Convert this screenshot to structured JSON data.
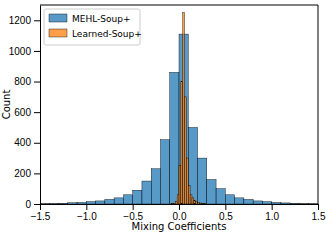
{
  "chart_data": {
    "type": "histogram",
    "x_label": "Mixing Coefficients",
    "y_label": "Count",
    "xlim": [
      -1.5,
      1.5
    ],
    "xticks": [
      {
        "value": -1.5,
        "label": "−1.5"
      },
      {
        "value": -1.0,
        "label": "−1.0"
      },
      {
        "value": -0.5,
        "label": "−0.5"
      },
      {
        "value": 0.0,
        "label": "0.0"
      },
      {
        "value": 0.5,
        "label": "0.5"
      },
      {
        "value": 1.0,
        "label": "1.0"
      },
      {
        "value": 1.5,
        "label": "1.5"
      }
    ],
    "ylim": [
      0,
      1300
    ],
    "yticks": [
      0,
      200,
      400,
      600,
      800,
      1000,
      1200
    ],
    "legend": "upper left",
    "series": [
      {
        "name": "MEHL-Soup+",
        "color": "#1f77b4",
        "bins": [
          -1.5,
          -1.4,
          -1.3,
          -1.2,
          -1.1,
          -1.0,
          -0.9,
          -0.8,
          -0.7,
          -0.6,
          -0.5,
          -0.4,
          -0.3,
          -0.2,
          -0.1,
          0.0,
          0.1,
          0.2,
          0.3,
          0.4,
          0.5,
          0.6,
          0.7,
          0.8,
          0.9,
          1.0,
          1.1,
          1.2,
          1.3,
          1.4,
          1.5
        ],
        "values": [
          2,
          3,
          5,
          8,
          10,
          15,
          20,
          30,
          40,
          60,
          90,
          150,
          230,
          420,
          860,
          1110,
          500,
          300,
          160,
          100,
          60,
          40,
          30,
          20,
          15,
          10,
          7,
          5,
          3,
          2
        ]
      },
      {
        "name": "Learned-Soup+",
        "color": "#ff7f0e",
        "bins": [
          -0.1,
          -0.08,
          -0.06,
          -0.04,
          -0.02,
          0.0,
          0.02,
          0.04,
          0.06,
          0.08,
          0.1,
          0.12,
          0.14,
          0.16,
          0.18,
          0.2,
          0.22,
          0.24,
          0.26,
          0.28,
          0.3
        ],
        "values": [
          0,
          2,
          5,
          15,
          60,
          250,
          800,
          1250,
          700,
          300,
          120,
          60,
          40,
          25,
          15,
          10,
          6,
          4,
          2,
          1
        ]
      }
    ]
  }
}
